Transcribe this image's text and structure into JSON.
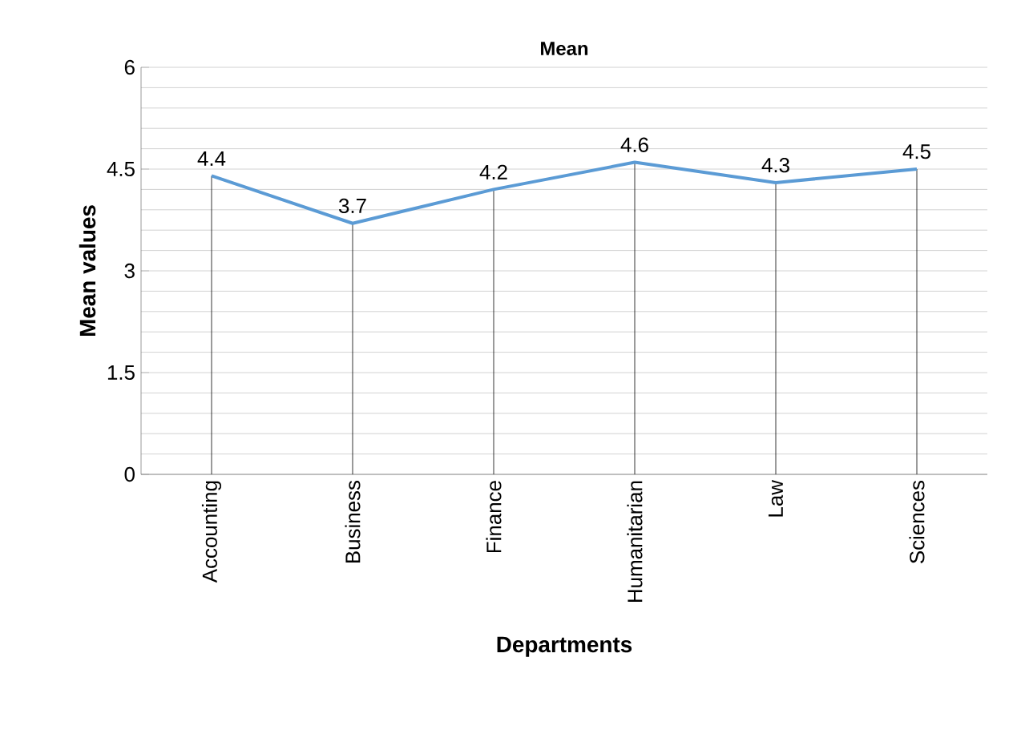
{
  "chart_data": {
    "type": "line",
    "title": "Mean",
    "xlabel": "Departments",
    "ylabel": "Mean values",
    "categories": [
      "Accounting",
      "Business",
      "Finance",
      "Humanitarian",
      "Law",
      "Sciences"
    ],
    "values": [
      4.4,
      3.7,
      4.2,
      4.6,
      4.3,
      4.5
    ],
    "color": "#5b9bd5",
    "data_labels": true,
    "ylim": [
      0,
      6
    ],
    "yticks": [
      0,
      1.5,
      3,
      4.5,
      6
    ],
    "grid": true,
    "marker": "none",
    "line_style": "solid"
  }
}
